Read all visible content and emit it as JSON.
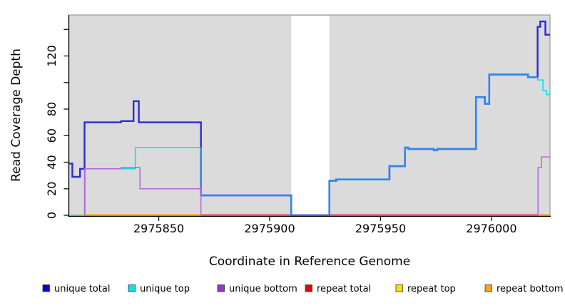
{
  "chart_data": {
    "type": "line",
    "subtype": "step-after-coverage-plot",
    "title": "",
    "xlabel": "Coordinate in Reference Genome",
    "ylabel": "Read Coverage Depth",
    "xlim": [
      2975809.6,
      2976026.4
    ],
    "ylim": [
      0,
      150.9
    ],
    "x_ticks": [
      2975850,
      2975900,
      2975950,
      2976000
    ],
    "x_tick_labels": [
      "2975850",
      "2975900",
      "2975950",
      "2976000"
    ],
    "y_ticks": [
      0,
      20,
      40,
      60,
      80,
      100,
      120,
      140
    ],
    "y_tick_labels": [
      "0",
      "20",
      "40",
      "60",
      "80",
      "",
      "120",
      ""
    ],
    "grid": false,
    "panel_bg": "#dbdbdb",
    "panel_border": "#999999",
    "gap_region": {
      "from": 2975909.7,
      "to": 2975926.9,
      "color": "#ffffff"
    },
    "series": [
      {
        "name": "unique total",
        "color": "#2b2bd5",
        "legend_color": "#0000e6",
        "width": 2.4,
        "points": [
          [
            2975809.6,
            39
          ],
          [
            2975811,
            29
          ],
          [
            2975814.5,
            35
          ],
          [
            2975816.5,
            70
          ],
          [
            2975833,
            71
          ],
          [
            2975838.6,
            86
          ],
          [
            2975841,
            70
          ],
          [
            2975869,
            15
          ],
          [
            2975909.7,
            0
          ],
          [
            2975926.9,
            26
          ],
          [
            2975930,
            27
          ],
          [
            2975954,
            37
          ],
          [
            2975961,
            51
          ],
          [
            2975962.5,
            50
          ],
          [
            2975974,
            49
          ],
          [
            2975975.5,
            50
          ],
          [
            2975993,
            89
          ],
          [
            2975997,
            84
          ],
          [
            2975999,
            106
          ],
          [
            2976016.5,
            104
          ],
          [
            2976020.8,
            142
          ],
          [
            2976022,
            146
          ],
          [
            2976024.3,
            136
          ]
        ]
      },
      {
        "name": "unique top",
        "color": "#00dfee",
        "overlap_color": "#2e86f0",
        "legend_color": "#00e5ee",
        "width": 1.5,
        "overlap_width": 2.6,
        "points": [
          [
            2975816.5,
            0
          ],
          [
            2975816.8,
            35
          ],
          [
            2975839.4,
            51
          ],
          [
            2975869,
            15
          ],
          [
            2975909.7,
            0
          ],
          [
            2975926.9,
            26
          ],
          [
            2975930,
            27
          ],
          [
            2975954,
            37
          ],
          [
            2975961,
            51
          ],
          [
            2975962.5,
            50
          ],
          [
            2975974,
            49
          ],
          [
            2975975.5,
            50
          ],
          [
            2975993,
            89
          ],
          [
            2975997,
            84
          ],
          [
            2975999,
            106
          ],
          [
            2976016.5,
            104
          ],
          [
            2976020.8,
            102
          ],
          [
            2976023.2,
            94
          ],
          [
            2976024.8,
            91
          ]
        ]
      },
      {
        "name": "unique bottom",
        "color": "#b567db",
        "legend_color": "#9932cc",
        "width": 1.5,
        "segments": [
          {
            "points": [
              [
                2975816.5,
                35
              ],
              [
                2975833,
                36
              ],
              [
                2975841.5,
                20
              ]
            ],
            "end": 2975869,
            "fromZero": true,
            "toZero": true
          },
          {
            "points": [
              [
                2976021,
                36
              ],
              [
                2976022.5,
                44
              ]
            ],
            "end": 2976026.4,
            "fromZero": true,
            "toZero": false
          }
        ]
      },
      {
        "name": "repeat total",
        "color": "#e0415c",
        "legend_color": "#ee0000",
        "width": 1.6,
        "constant_value": 0
      },
      {
        "name": "repeat top",
        "color": "#ffff00",
        "legend_color": "#f2e400",
        "width": 1.6,
        "constant_value": 0
      },
      {
        "name": "repeat bottom",
        "color": "#ffa500",
        "legend_color": "#ffa500",
        "width": 1.6,
        "constant_value": 0
      }
    ],
    "zero_line_segments": [
      {
        "from": 2975809.6,
        "to": 2975816.5,
        "color": "#8fdca8"
      },
      {
        "from": 2975816.5,
        "to": 2975869,
        "color": "#ffa500"
      },
      {
        "from": 2975869,
        "to": 2976021,
        "color": "#e0415c"
      },
      {
        "from": 2976021,
        "to": 2976026.4,
        "color": "#ffa500"
      }
    ],
    "legend": {
      "position": "bottom",
      "entries": [
        "unique total",
        "unique top",
        "unique bottom",
        "repeat total",
        "repeat top",
        "repeat bottom"
      ]
    }
  }
}
